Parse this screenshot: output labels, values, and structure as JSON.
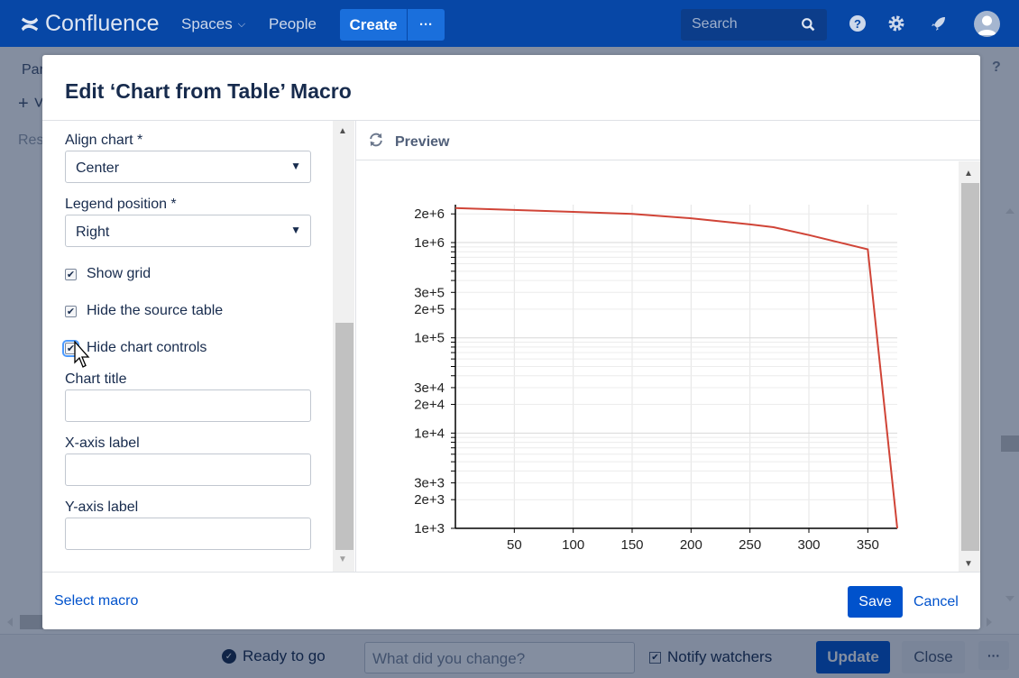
{
  "app": {
    "logo_text": "Confluence",
    "nav": {
      "spaces": "Spaces",
      "people": "People"
    },
    "create_label": "Create",
    "more_label": "···",
    "search_placeholder": "Search",
    "help_mark": "?"
  },
  "page": {
    "breadcrumb_partial": "Par",
    "plus_partial": "+ ˅",
    "row_partial": "Res"
  },
  "dialog": {
    "title": "Edit ‘Chart from Table’ Macro",
    "fields": {
      "align_label": "Align chart *",
      "align_value": "Center",
      "legend_label": "Legend position *",
      "legend_value": "Right",
      "show_grid": "Show grid",
      "hide_source": "Hide the source table",
      "hide_controls": "Hide chart controls",
      "chart_title_label": "Chart title",
      "xaxis_label": "X-axis label",
      "yaxis_label": "Y-axis label"
    },
    "preview_label": "Preview",
    "select_macro": "Select macro",
    "save": "Save",
    "cancel": "Cancel"
  },
  "footer": {
    "status": "Ready to go",
    "change_placeholder": "What did you change?",
    "notify": "Notify watchers",
    "update": "Update",
    "close": "Close",
    "more": "···"
  },
  "colors": {
    "nav_bg": "#0747a6",
    "primary": "#0052cc",
    "series_line": "#d04437"
  },
  "chart_data": {
    "type": "line",
    "x_ticks": [
      50,
      100,
      150,
      200,
      250,
      300,
      350
    ],
    "x_range": [
      0,
      375
    ],
    "y_scale": "log",
    "y_range": [
      1000,
      2500000
    ],
    "y_tick_labels": [
      {
        "value": 2000000,
        "label": "2e+6"
      },
      {
        "value": 1000000,
        "label": "1e+6"
      },
      {
        "value": 300000,
        "label": "3e+5"
      },
      {
        "value": 200000,
        "label": "2e+5"
      },
      {
        "value": 100000,
        "label": "1e+5"
      },
      {
        "value": 30000,
        "label": "3e+4"
      },
      {
        "value": 20000,
        "label": "2e+4"
      },
      {
        "value": 10000,
        "label": "1e+4"
      },
      {
        "value": 3000,
        "label": "3e+3"
      },
      {
        "value": 2000,
        "label": "2e+3"
      },
      {
        "value": 1000,
        "label": "1e+3"
      }
    ],
    "grid": true,
    "series": [
      {
        "x": [
          0,
          50,
          100,
          150,
          200,
          250,
          270,
          300,
          350,
          375
        ],
        "y": [
          2300000,
          2200000,
          2100000,
          2000000,
          1800000,
          1550000,
          1450000,
          1200000,
          850000,
          1000
        ],
        "color": "#d04437"
      }
    ]
  }
}
